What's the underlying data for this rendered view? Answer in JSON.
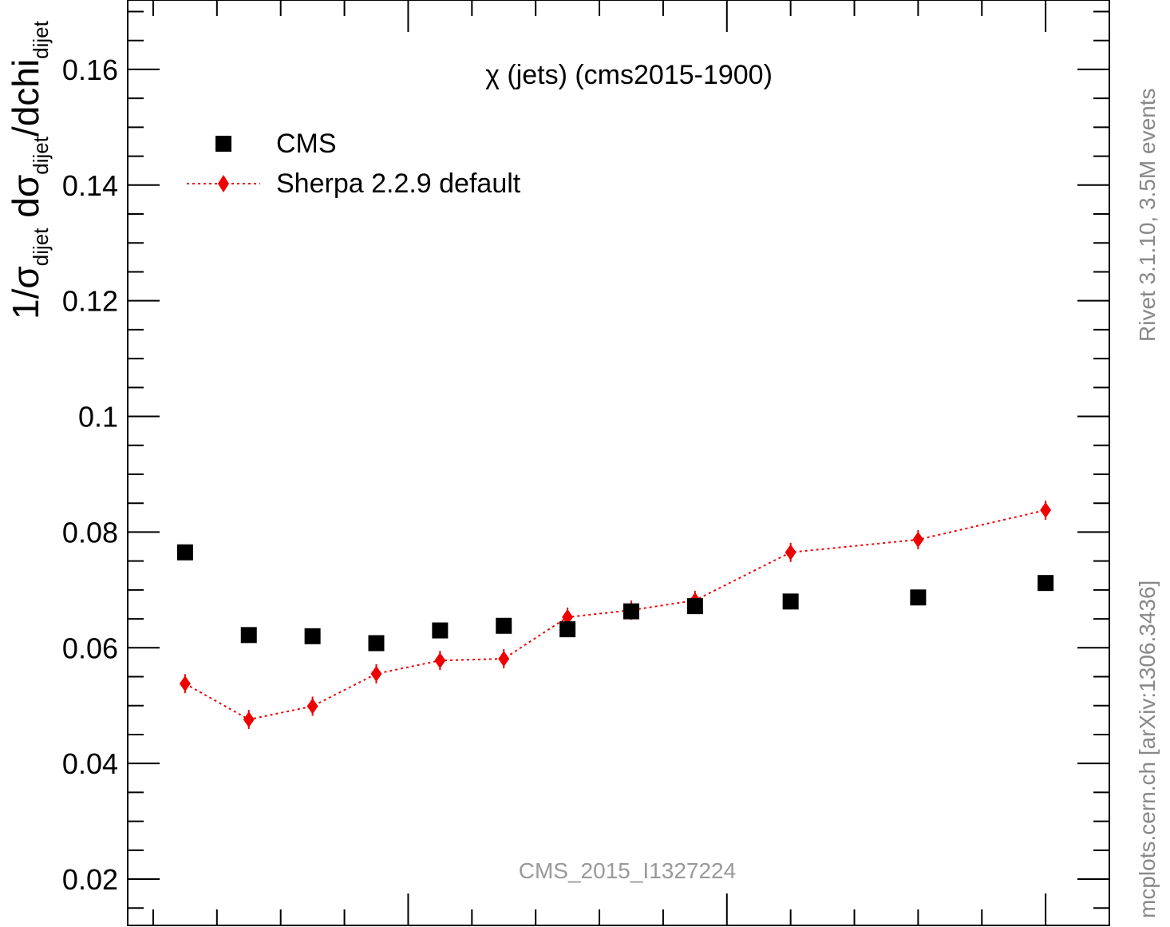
{
  "chart_data": {
    "type": "scatter",
    "title": "χ (jets) (cms2015-1900)",
    "ylabel_main": "1/σ",
    "ylabel_sub1": "dijet",
    "ylabel_mid": " dσ",
    "ylabel_sub2": "dijet",
    "ylabel_mid2": "/dchi",
    "ylabel_sub3": "dijet",
    "analysis_label": "CMS_2015_I1327224",
    "side_label_top": "Rivet 3.1.10,  3.5M events",
    "side_label_bottom": "mcplots.cern.ch [arXiv:1306.3436]",
    "ylim": [
      0.012,
      0.172
    ],
    "yticks": [
      0.02,
      0.04,
      0.06,
      0.08,
      0.1,
      0.12,
      0.14,
      0.16
    ],
    "ytick_labels": [
      "0.02",
      "0.04",
      "0.06",
      "0.08",
      "0.1",
      "0.12",
      "0.14",
      "0.16"
    ],
    "x": [
      1.5,
      2.5,
      3.5,
      4.5,
      5.5,
      6.5,
      7.5,
      8.5,
      9.5,
      11.0,
      13.0,
      15.0
    ],
    "xlim": [
      0.6,
      16.0
    ],
    "series": [
      {
        "name": "CMS",
        "color": "#000000",
        "marker": "square",
        "values": [
          0.0765,
          0.0622,
          0.062,
          0.0608,
          0.063,
          0.0638,
          0.0632,
          0.0663,
          0.0672,
          0.068,
          0.0687,
          0.0712
        ]
      },
      {
        "name": "Sherpa 2.2.9 default",
        "color": "#ee0000",
        "marker": "diamond",
        "values": [
          0.0538,
          0.0476,
          0.0499,
          0.0555,
          0.0578,
          0.0581,
          0.0653,
          0.0665,
          0.0682,
          0.0765,
          0.0787,
          0.0838
        ]
      }
    ],
    "legend_position": "top-left"
  }
}
